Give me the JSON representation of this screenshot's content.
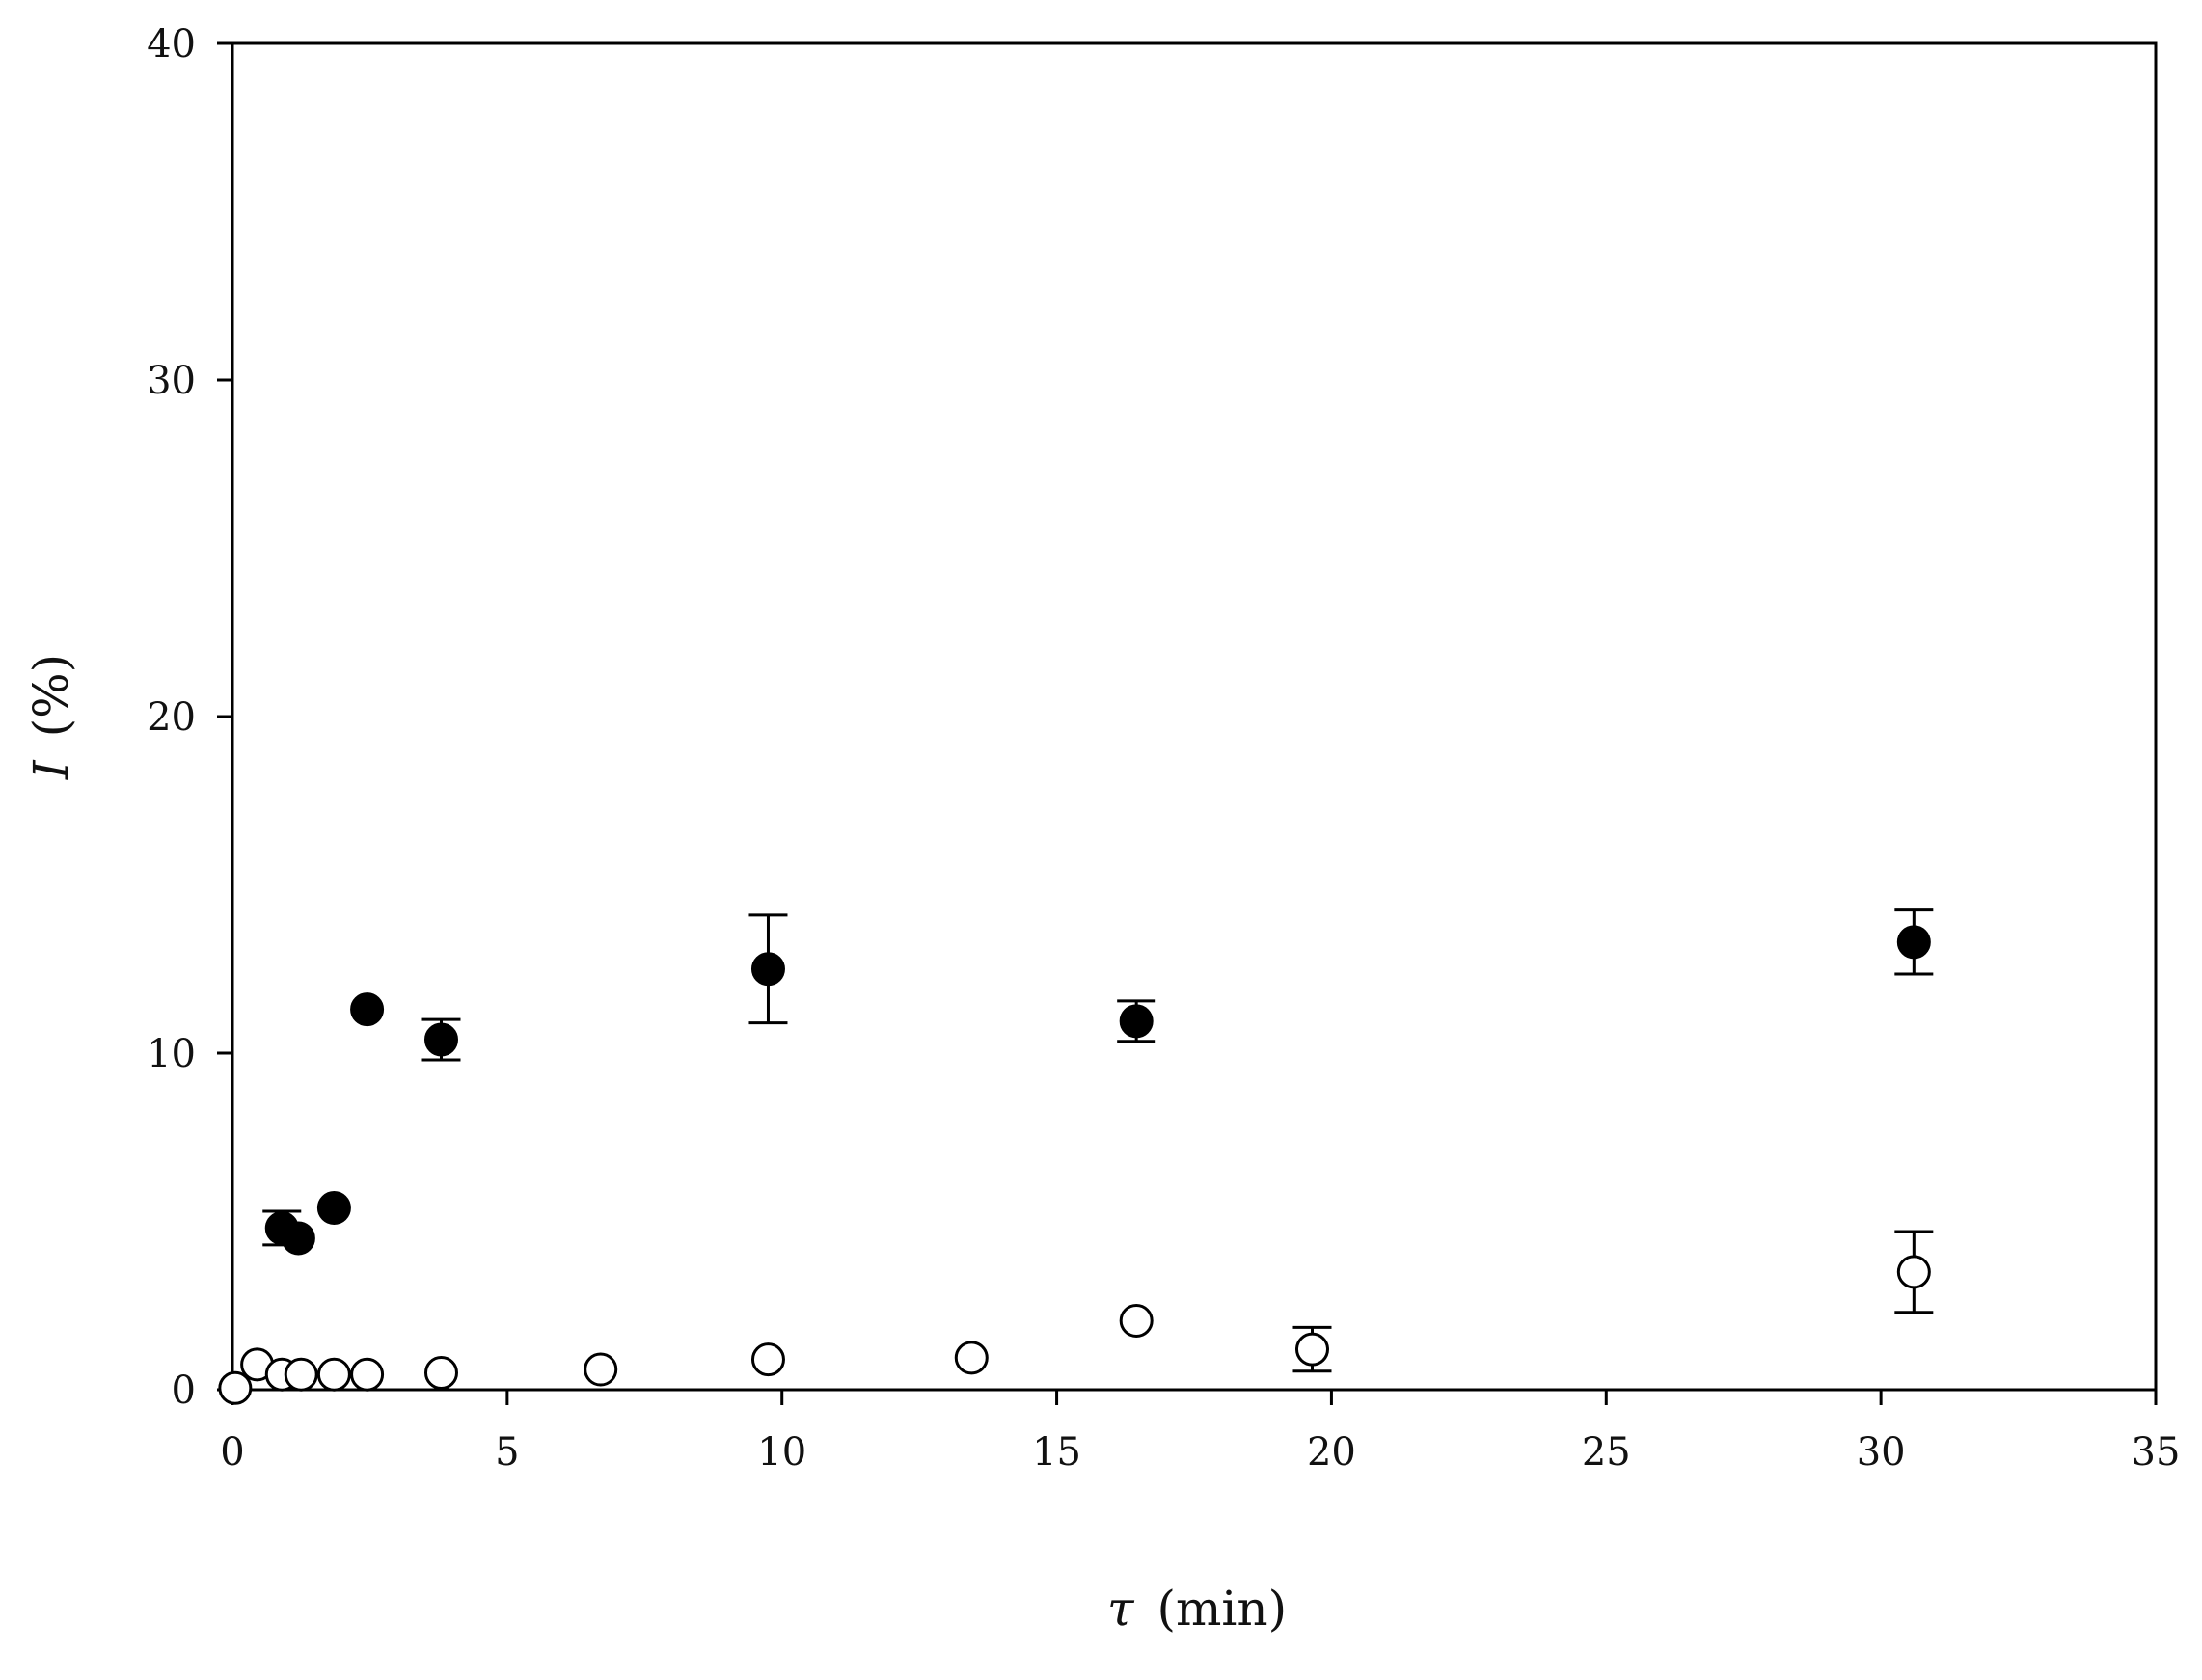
{
  "chart_data": {
    "type": "scatter",
    "xlabel_symbol": "τ",
    "xlabel_unit": "(min)",
    "ylabel_symbol": "I",
    "ylabel_unit": "(%)",
    "xlim": [
      0,
      35
    ],
    "ylim": [
      0,
      40
    ],
    "x_ticks": [
      0,
      5,
      10,
      15,
      20,
      25,
      30,
      35
    ],
    "y_ticks": [
      0,
      10,
      20,
      30,
      40
    ],
    "grid": false,
    "legend": "none",
    "series": [
      {
        "marker": "filled-circle",
        "color": "#000000",
        "points": [
          {
            "x": 0.9,
            "y": 4.8,
            "err": 0.5
          },
          {
            "x": 1.2,
            "y": 4.5,
            "err": 0
          },
          {
            "x": 1.85,
            "y": 5.4,
            "err": 0
          },
          {
            "x": 2.45,
            "y": 11.3,
            "err": 0
          },
          {
            "x": 3.8,
            "y": 10.4,
            "err": 0.6
          },
          {
            "x": 9.75,
            "y": 12.5,
            "err": 1.6
          },
          {
            "x": 16.45,
            "y": 10.95,
            "err": 0.6
          },
          {
            "x": 30.6,
            "y": 13.3,
            "err": 0.95
          }
        ]
      },
      {
        "marker": "open-circle",
        "color": "#000000",
        "points": [
          {
            "x": 0.05,
            "y": 0.05,
            "err": 0
          },
          {
            "x": 0.45,
            "y": 0.75,
            "err": 0
          },
          {
            "x": 0.9,
            "y": 0.45,
            "err": 0
          },
          {
            "x": 1.25,
            "y": 0.45,
            "err": 0
          },
          {
            "x": 1.85,
            "y": 0.45,
            "err": 0
          },
          {
            "x": 2.45,
            "y": 0.45,
            "err": 0
          },
          {
            "x": 3.8,
            "y": 0.5,
            "err": 0
          },
          {
            "x": 6.7,
            "y": 0.6,
            "err": 0
          },
          {
            "x": 9.75,
            "y": 0.9,
            "err": 0
          },
          {
            "x": 13.45,
            "y": 0.95,
            "err": 0
          },
          {
            "x": 16.45,
            "y": 2.05,
            "err": 0
          },
          {
            "x": 19.65,
            "y": 1.2,
            "err": 0.65
          },
          {
            "x": 30.6,
            "y": 3.5,
            "err": 1.2
          }
        ]
      }
    ]
  }
}
